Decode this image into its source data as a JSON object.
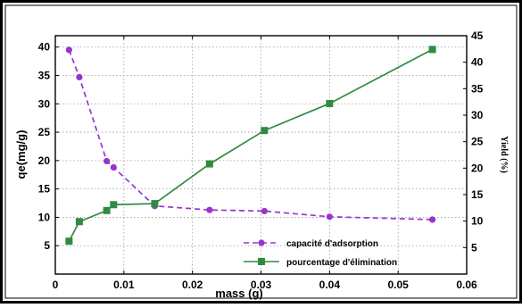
{
  "chart_data": {
    "type": "line",
    "xlabel": "mass  (g)",
    "ylabel": "qe(mg/g)",
    "y2label": "Yield (%)",
    "xlim": [
      0,
      0.06
    ],
    "ylim": [
      0,
      42
    ],
    "y2lim": [
      0,
      45
    ],
    "x_ticks": [
      0,
      0.01,
      0.02,
      0.03,
      0.04,
      0.05,
      0.06
    ],
    "x_tick_labels": [
      "0",
      "0.01",
      "0.02",
      "0.03",
      "0.04",
      "0.05",
      "0.06"
    ],
    "y_ticks": [
      5,
      10,
      15,
      20,
      25,
      30,
      35,
      40
    ],
    "y_tick_labels": [
      "5",
      "10",
      "15",
      "20",
      "25",
      "30",
      "35",
      "40"
    ],
    "y2_ticks": [
      5,
      10,
      15,
      20,
      25,
      30,
      35,
      40,
      45
    ],
    "y2_tick_labels": [
      "5",
      "10",
      "15",
      "20",
      "25",
      "30",
      "35",
      "40",
      "45"
    ],
    "grid": true,
    "legend_position": "bottom-right",
    "series": [
      {
        "name": "capacité d'adsorption",
        "axis": "left",
        "color": "#9933cc",
        "marker": "circle",
        "line_style": "dashed",
        "x": [
          0.002,
          0.0035,
          0.0075,
          0.0085,
          0.0145,
          0.0225,
          0.0305,
          0.04,
          0.055
        ],
        "y": [
          39.5,
          34.7,
          19.9,
          18.8,
          12.0,
          11.3,
          11.1,
          10.1,
          9.6
        ]
      },
      {
        "name": "pourcentage d'élimination",
        "axis": "right",
        "color": "#2e8b40",
        "marker": "square",
        "line_style": "solid",
        "x": [
          0.002,
          0.0035,
          0.0075,
          0.0085,
          0.0145,
          0.0225,
          0.0305,
          0.04,
          0.055
        ],
        "y": [
          6.2,
          9.9,
          12.0,
          13.1,
          13.3,
          20.8,
          27.1,
          32.2,
          42.4
        ]
      }
    ]
  }
}
